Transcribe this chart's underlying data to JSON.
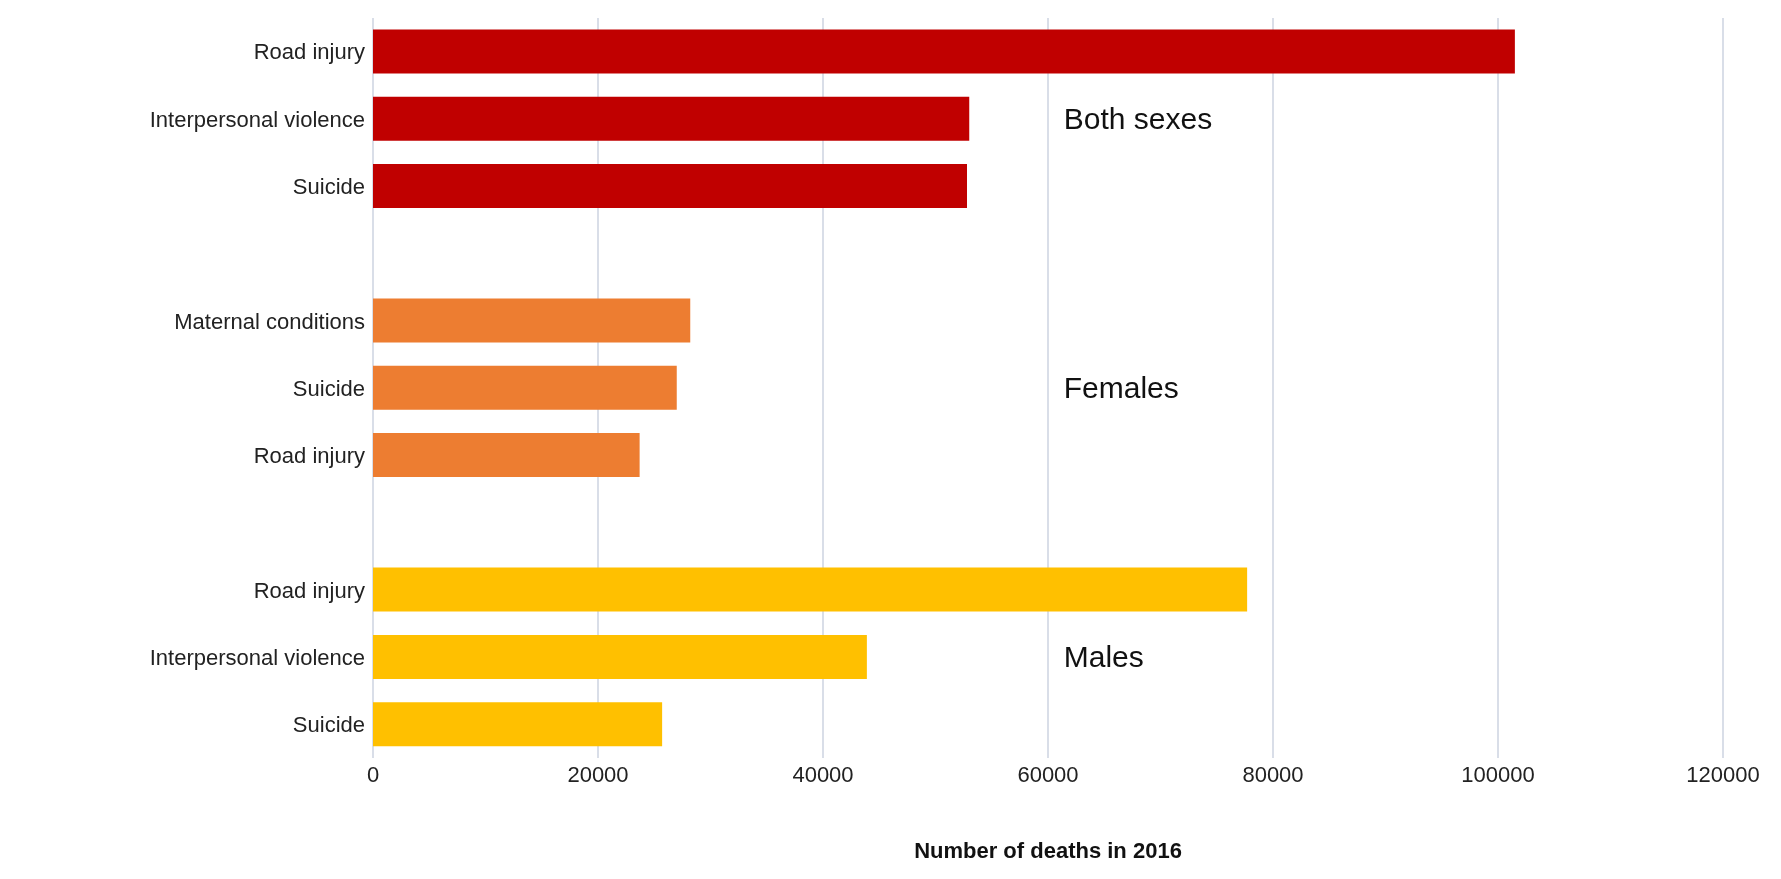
{
  "chart_data": {
    "type": "bar",
    "orientation": "horizontal",
    "xlabel": "Number of deaths in 2016",
    "categories": [
      "Road injury",
      "Interpersonal violence",
      "Suicide",
      null,
      "Maternal conditions",
      "Suicide",
      "Road injury",
      null,
      "Road injury",
      "Interpersonal violence",
      "Suicide"
    ],
    "series": [
      {
        "name": "Both sexes",
        "color": "#c00000",
        "values": [
          101500,
          53000,
          52800,
          null,
          null,
          null,
          null,
          null,
          null,
          null,
          null
        ]
      },
      {
        "name": "Females",
        "color": "#ed7d31",
        "values": [
          null,
          null,
          null,
          null,
          28200,
          27000,
          23700,
          null,
          null,
          null,
          null
        ]
      },
      {
        "name": "Males",
        "color": "#ffc000",
        "values": [
          null,
          null,
          null,
          null,
          null,
          null,
          null,
          null,
          77700,
          43900,
          25700
        ]
      }
    ],
    "xlim": [
      0,
      120000
    ],
    "xticks": [
      0,
      20000,
      40000,
      60000,
      80000,
      100000,
      120000
    ],
    "grid": "x"
  }
}
